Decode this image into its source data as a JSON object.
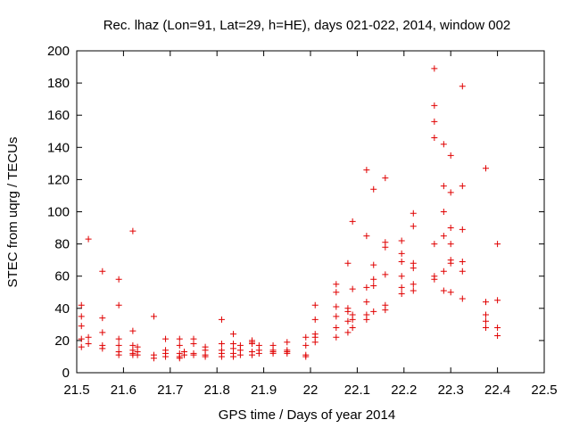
{
  "chart_data": {
    "type": "scatter",
    "title": "Rec. lhaz (Lon=91, Lat=29, h=HE), days 021-022, 2014, window 002",
    "xlabel": "GPS time / Days of year 2014",
    "ylabel": "STEC from uqrg / TECUs",
    "xlim": [
      21.5,
      22.5
    ],
    "ylim": [
      0,
      200
    ],
    "x_ticks": [
      "21.5",
      "21.6",
      "21.7",
      "21.8",
      "21.9",
      "22",
      "22.1",
      "22.2",
      "22.3",
      "22.4",
      "22.5"
    ],
    "y_ticks": [
      "0",
      "20",
      "40",
      "60",
      "80",
      "100",
      "120",
      "140",
      "160",
      "180",
      "200"
    ],
    "grid": false,
    "marker": "plus",
    "color": "#e00000",
    "points": [
      [
        21.51,
        42
      ],
      [
        21.51,
        35
      ],
      [
        21.51,
        29
      ],
      [
        21.51,
        21
      ],
      [
        21.51,
        16
      ],
      [
        21.525,
        83
      ],
      [
        21.525,
        22
      ],
      [
        21.525,
        18
      ],
      [
        21.555,
        63
      ],
      [
        21.555,
        34
      ],
      [
        21.555,
        25
      ],
      [
        21.555,
        17
      ],
      [
        21.555,
        15
      ],
      [
        21.59,
        58
      ],
      [
        21.59,
        42
      ],
      [
        21.59,
        21
      ],
      [
        21.59,
        17
      ],
      [
        21.59,
        13
      ],
      [
        21.59,
        11
      ],
      [
        21.62,
        88
      ],
      [
        21.62,
        26
      ],
      [
        21.62,
        17
      ],
      [
        21.62,
        14
      ],
      [
        21.62,
        12
      ],
      [
        21.62,
        11
      ],
      [
        21.63,
        16
      ],
      [
        21.63,
        13
      ],
      [
        21.63,
        11
      ],
      [
        21.665,
        35
      ],
      [
        21.665,
        11
      ],
      [
        21.665,
        9
      ],
      [
        21.69,
        21
      ],
      [
        21.69,
        14
      ],
      [
        21.69,
        12
      ],
      [
        21.69,
        10
      ],
      [
        21.72,
        21
      ],
      [
        21.72,
        17
      ],
      [
        21.72,
        12
      ],
      [
        21.72,
        10
      ],
      [
        21.72,
        9
      ],
      [
        21.73,
        13
      ],
      [
        21.73,
        11
      ],
      [
        21.75,
        21
      ],
      [
        21.75,
        18
      ],
      [
        21.75,
        12
      ],
      [
        21.75,
        11
      ],
      [
        21.775,
        16
      ],
      [
        21.775,
        14
      ],
      [
        21.775,
        11
      ],
      [
        21.775,
        10
      ],
      [
        21.81,
        33
      ],
      [
        21.81,
        18
      ],
      [
        21.81,
        14
      ],
      [
        21.81,
        12
      ],
      [
        21.81,
        10
      ],
      [
        21.835,
        24
      ],
      [
        21.835,
        18
      ],
      [
        21.835,
        15
      ],
      [
        21.835,
        12
      ],
      [
        21.835,
        10
      ],
      [
        21.85,
        17
      ],
      [
        21.85,
        14
      ],
      [
        21.85,
        11
      ],
      [
        21.875,
        20
      ],
      [
        21.875,
        19
      ],
      [
        21.875,
        18
      ],
      [
        21.875,
        13
      ],
      [
        21.875,
        11
      ],
      [
        21.89,
        17
      ],
      [
        21.89,
        14
      ],
      [
        21.89,
        12
      ],
      [
        21.92,
        17
      ],
      [
        21.92,
        14
      ],
      [
        21.92,
        13
      ],
      [
        21.92,
        12
      ],
      [
        21.95,
        19
      ],
      [
        21.95,
        14
      ],
      [
        21.95,
        13
      ],
      [
        21.95,
        12
      ],
      [
        21.99,
        22
      ],
      [
        21.99,
        17
      ],
      [
        21.99,
        11
      ],
      [
        21.99,
        10
      ],
      [
        22.01,
        42
      ],
      [
        22.01,
        33
      ],
      [
        22.01,
        24
      ],
      [
        22.01,
        22
      ],
      [
        22.01,
        19
      ],
      [
        22.055,
        55
      ],
      [
        22.055,
        50
      ],
      [
        22.055,
        41
      ],
      [
        22.055,
        35
      ],
      [
        22.055,
        28
      ],
      [
        22.055,
        22
      ],
      [
        22.08,
        68
      ],
      [
        22.08,
        40
      ],
      [
        22.08,
        38
      ],
      [
        22.08,
        32
      ],
      [
        22.08,
        25
      ],
      [
        22.09,
        94
      ],
      [
        22.09,
        52
      ],
      [
        22.09,
        36
      ],
      [
        22.09,
        33
      ],
      [
        22.09,
        28
      ],
      [
        22.12,
        126
      ],
      [
        22.12,
        85
      ],
      [
        22.12,
        53
      ],
      [
        22.12,
        44
      ],
      [
        22.12,
        36
      ],
      [
        22.12,
        33
      ],
      [
        22.135,
        114
      ],
      [
        22.135,
        67
      ],
      [
        22.135,
        58
      ],
      [
        22.135,
        54
      ],
      [
        22.135,
        38
      ],
      [
        22.16,
        121
      ],
      [
        22.16,
        81
      ],
      [
        22.16,
        78
      ],
      [
        22.16,
        61
      ],
      [
        22.16,
        42
      ],
      [
        22.16,
        39
      ],
      [
        22.195,
        82
      ],
      [
        22.195,
        74
      ],
      [
        22.195,
        69
      ],
      [
        22.195,
        60
      ],
      [
        22.195,
        53
      ],
      [
        22.195,
        49
      ],
      [
        22.22,
        99
      ],
      [
        22.22,
        91
      ],
      [
        22.22,
        68
      ],
      [
        22.22,
        65
      ],
      [
        22.22,
        55
      ],
      [
        22.22,
        51
      ],
      [
        22.265,
        189
      ],
      [
        22.265,
        166
      ],
      [
        22.265,
        156
      ],
      [
        22.265,
        146
      ],
      [
        22.265,
        80
      ],
      [
        22.265,
        60
      ],
      [
        22.265,
        58
      ],
      [
        22.285,
        142
      ],
      [
        22.285,
        116
      ],
      [
        22.285,
        100
      ],
      [
        22.285,
        85
      ],
      [
        22.285,
        63
      ],
      [
        22.285,
        51
      ],
      [
        22.3,
        135
      ],
      [
        22.3,
        112
      ],
      [
        22.3,
        90
      ],
      [
        22.3,
        80
      ],
      [
        22.3,
        70
      ],
      [
        22.3,
        68
      ],
      [
        22.3,
        50
      ],
      [
        22.325,
        178
      ],
      [
        22.325,
        116
      ],
      [
        22.325,
        89
      ],
      [
        22.325,
        69
      ],
      [
        22.325,
        63
      ],
      [
        22.325,
        46
      ],
      [
        22.375,
        127
      ],
      [
        22.375,
        44
      ],
      [
        22.375,
        36
      ],
      [
        22.375,
        32
      ],
      [
        22.375,
        28
      ],
      [
        22.4,
        80
      ],
      [
        22.4,
        45
      ],
      [
        22.4,
        28
      ],
      [
        22.4,
        23
      ]
    ]
  }
}
